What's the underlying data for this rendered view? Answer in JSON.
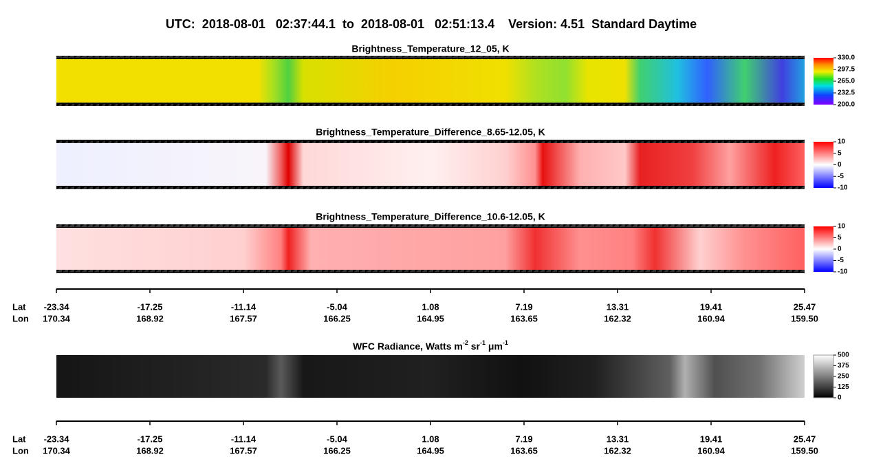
{
  "title": "UTC:  2018-08-01   02:37:44.1  to  2018-08-01   02:51:13.4    Version: 4.51  Standard Daytime",
  "chart_data": [
    {
      "type": "image",
      "title": "Brightness_Temperature_12_05, K",
      "colormap": "rainbow",
      "clim": [
        200,
        330
      ],
      "cticks": [
        {
          "value": 330,
          "label": "330.0"
        },
        297.5,
        {
          "value": 265,
          "label": "265.0"
        },
        232.5,
        {
          "value": 200,
          "label": "200.0"
        }
      ]
    },
    {
      "type": "image",
      "title": "Brightness_Temperature_Difference_8.65-12.05, K",
      "colormap": "bwr",
      "clim": [
        -10,
        10
      ],
      "cticks": [
        10,
        5,
        0,
        -5,
        -10
      ]
    },
    {
      "type": "image",
      "title": "Brightness_Temperature_Difference_10.6-12.05, K",
      "colormap": "bwr",
      "clim": [
        -10,
        10
      ],
      "cticks": [
        10,
        5,
        0,
        -5,
        -10
      ]
    },
    {
      "type": "image",
      "title_parts": [
        "WFC Radiance, Watts m",
        "-2",
        " sr",
        "-1",
        " μm",
        "-1"
      ],
      "colormap": "gray",
      "clim": [
        0,
        500
      ],
      "cticks": [
        500,
        375,
        250,
        125,
        0
      ]
    }
  ],
  "track_axis": {
    "lat_label": "Lat",
    "lon_label": "Lon",
    "lat": [
      "-23.34",
      "-17.25",
      "-11.14",
      "-5.04",
      "1.08",
      "7.19",
      "13.31",
      "19.41",
      "25.47"
    ],
    "lon": [
      "170.34",
      "168.92",
      "167.57",
      "166.25",
      "164.95",
      "163.65",
      "162.32",
      "160.94",
      "159.50"
    ]
  }
}
